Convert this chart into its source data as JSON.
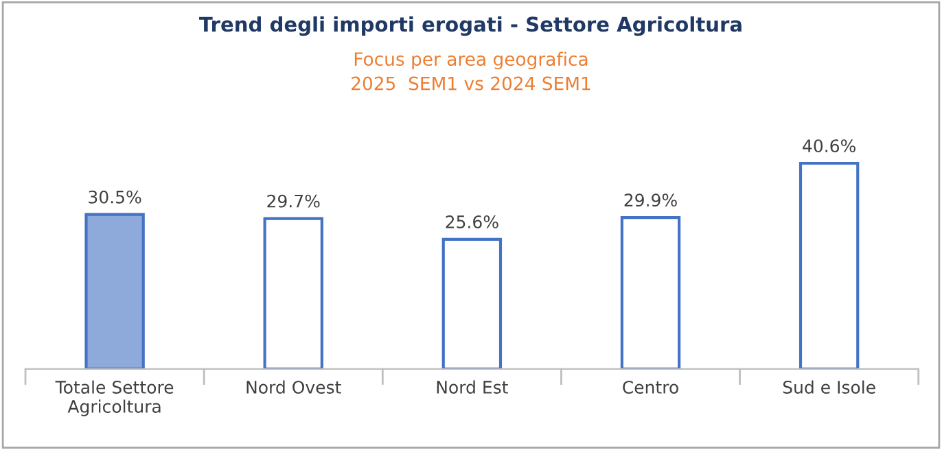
{
  "chart_data": {
    "type": "bar",
    "title": "Trend degli importi erogati - Settore Agricoltura",
    "subtitle": "Focus per area geografica\n2025  SEM1 vs 2024 SEM1",
    "categories": [
      "Totale Settore\nAgricoltura",
      "Nord Ovest",
      "Nord Est",
      "Centro",
      "Sud e Isole"
    ],
    "values": [
      30.5,
      29.7,
      25.6,
      29.9,
      40.6
    ],
    "colors": [
      "#8eaadb",
      "#ffffff",
      "#ffffff",
      "#ffffff",
      "#ffffff"
    ],
    "value_labels": [
      "30.5%",
      "29.7%",
      "25.6%",
      "29.9%",
      "40.6%"
    ],
    "tick_labels": "x",
    "grid": false,
    "legend": false
  }
}
